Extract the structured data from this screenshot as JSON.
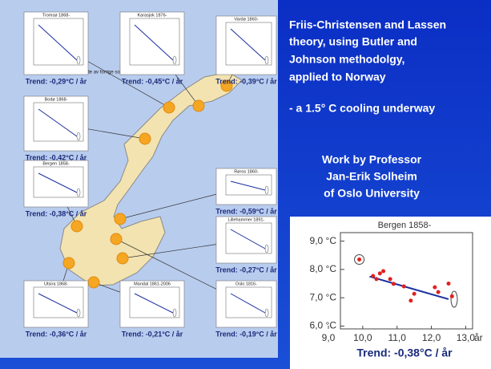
{
  "headline": [
    "Friis-Christensen  and Lassen",
    "theory, using Butler and",
    "Johnson methodolgy,",
    "applied to Norway"
  ],
  "cooling": "- a 1.5° C cooling underway",
  "credit": [
    "Work by Professor",
    "Jan-Erik Solheim",
    "of Oslo University"
  ],
  "map_annotation": "Lengde av forrige solflekkperiode",
  "stations": [
    {
      "title": "Tromsø 1868-",
      "trend": "Trend: -0,29°C / år"
    },
    {
      "title": "Karasjok 1876-",
      "trend": "Trend: -0,45°C / år"
    },
    {
      "title": "Vardø 1860-",
      "trend": "Trend: -0,39°C / år"
    },
    {
      "title": "Bodø 1868-",
      "trend": "Trend: -0,42°C / år"
    },
    {
      "title": "Bergen 1858-",
      "trend": "Trend: -0,38°C / år"
    },
    {
      "title": "Røros 1860-",
      "trend": "Trend: -0,59°C / år"
    },
    {
      "title": "Lillehammer 1891-",
      "trend": "Trend: -0,27°C / år"
    },
    {
      "title": "Utsira 1868-",
      "trend": "Trend: -0,36°C / år"
    },
    {
      "title": "Mandal 1861-2006",
      "trend": "Trend: -0,21°C / år"
    },
    {
      "title": "Oslo 1816-",
      "trend": "Trend: -0,19°C / år"
    }
  ],
  "chart_data": {
    "type": "scatter",
    "title": "Bergen 1858-",
    "x_unit": "år",
    "trend": "Trend: -0,38°C / år",
    "color": "#e02020",
    "x": [
      9.9,
      10.3,
      10.4,
      10.5,
      10.6,
      10.8,
      10.9,
      11.2,
      11.5,
      12.1,
      12.2,
      12.5,
      11.4,
      12.6
    ],
    "values": [
      8.35,
      7.77,
      7.66,
      7.86,
      7.94,
      7.66,
      7.49,
      7.4,
      7.14,
      7.37,
      7.2,
      7.5,
      6.9,
      7.05
    ],
    "xlim": [
      9,
      13.2
    ],
    "ylim": [
      5.9,
      9.3
    ],
    "xticks": [
      {
        "value": 9,
        "label": "9,0"
      },
      {
        "value": 10,
        "label": "10,0"
      },
      {
        "value": 11,
        "label": "11,0"
      },
      {
        "value": 12,
        "label": "12,0"
      },
      {
        "value": 13,
        "label": "13,0"
      }
    ],
    "yticks": [
      {
        "value": 9,
        "label": "9,0 °C"
      },
      {
        "value": 8,
        "label": "8,0 °C"
      },
      {
        "value": 7,
        "label": "7,0 °C"
      },
      {
        "value": 6,
        "label": "6,0 °C"
      }
    ]
  }
}
